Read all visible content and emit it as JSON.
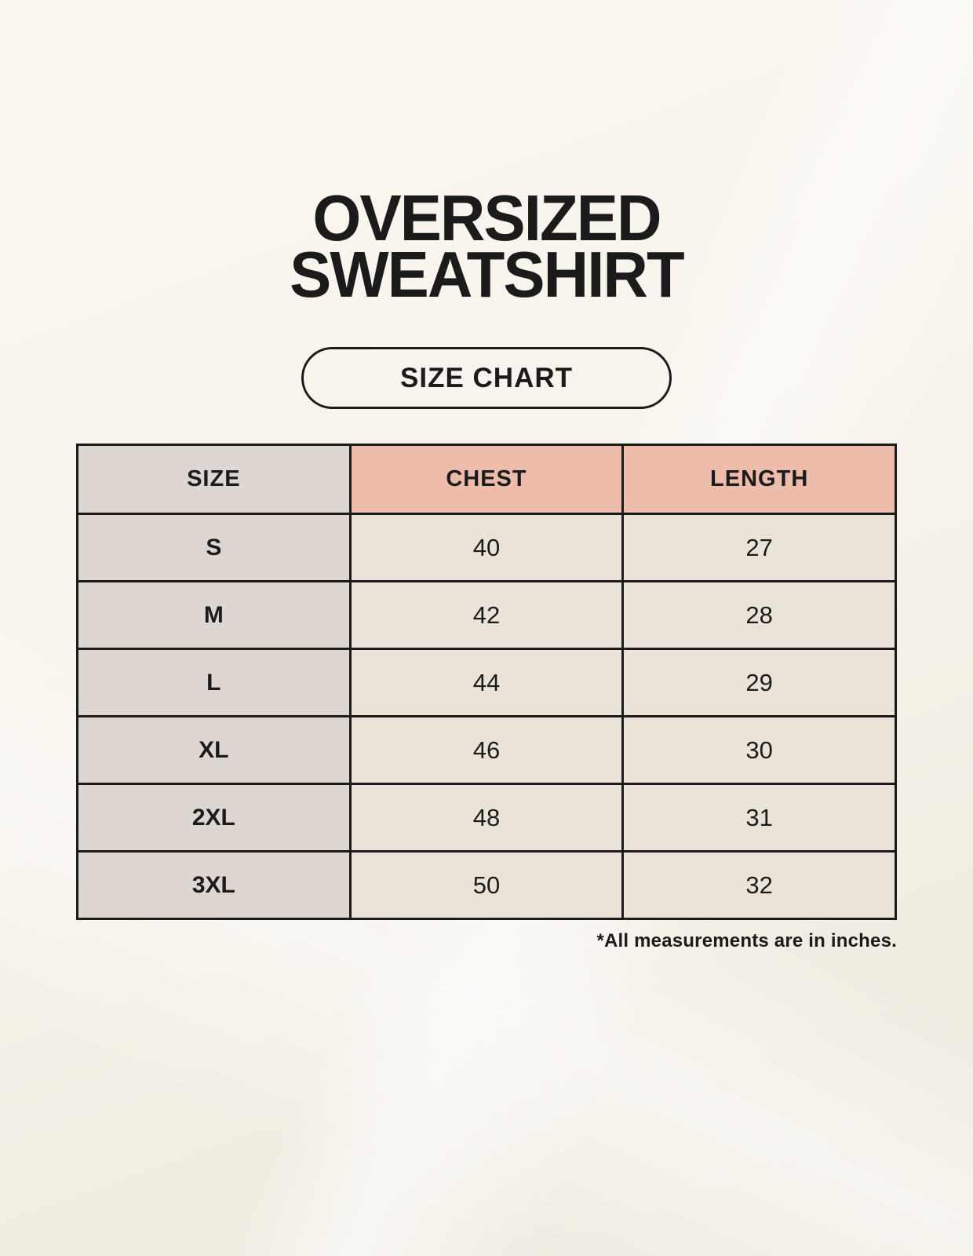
{
  "header": {
    "title_line1": "OVERSIZED",
    "title_line2": "SWEATSHIRT",
    "badge_label": "SIZE CHART"
  },
  "footnote": "*All measurements are in inches.",
  "chart_data": {
    "type": "table",
    "title": "OVERSIZED SWEATSHIRT",
    "subtitle": "SIZE CHART",
    "columns": [
      "SIZE",
      "CHEST",
      "LENGTH"
    ],
    "rows": [
      {
        "size": "S",
        "chest": "40",
        "length": "27"
      },
      {
        "size": "M",
        "chest": "42",
        "length": "28"
      },
      {
        "size": "L",
        "chest": "44",
        "length": "29"
      },
      {
        "size": "XL",
        "chest": "46",
        "length": "30"
      },
      {
        "size": "2XL",
        "chest": "48",
        "length": "31"
      },
      {
        "size": "3XL",
        "chest": "50",
        "length": "32"
      }
    ],
    "units": "inches",
    "note": "*All measurements are in inches."
  },
  "colors": {
    "page_bg": "#f8f4ec",
    "accent_header_bg": "#edbcab",
    "size_col_bg": "#ded6d0",
    "cell_bg": "#eae3d7",
    "border": "#1b1b1b",
    "text": "#1b1b1b"
  }
}
